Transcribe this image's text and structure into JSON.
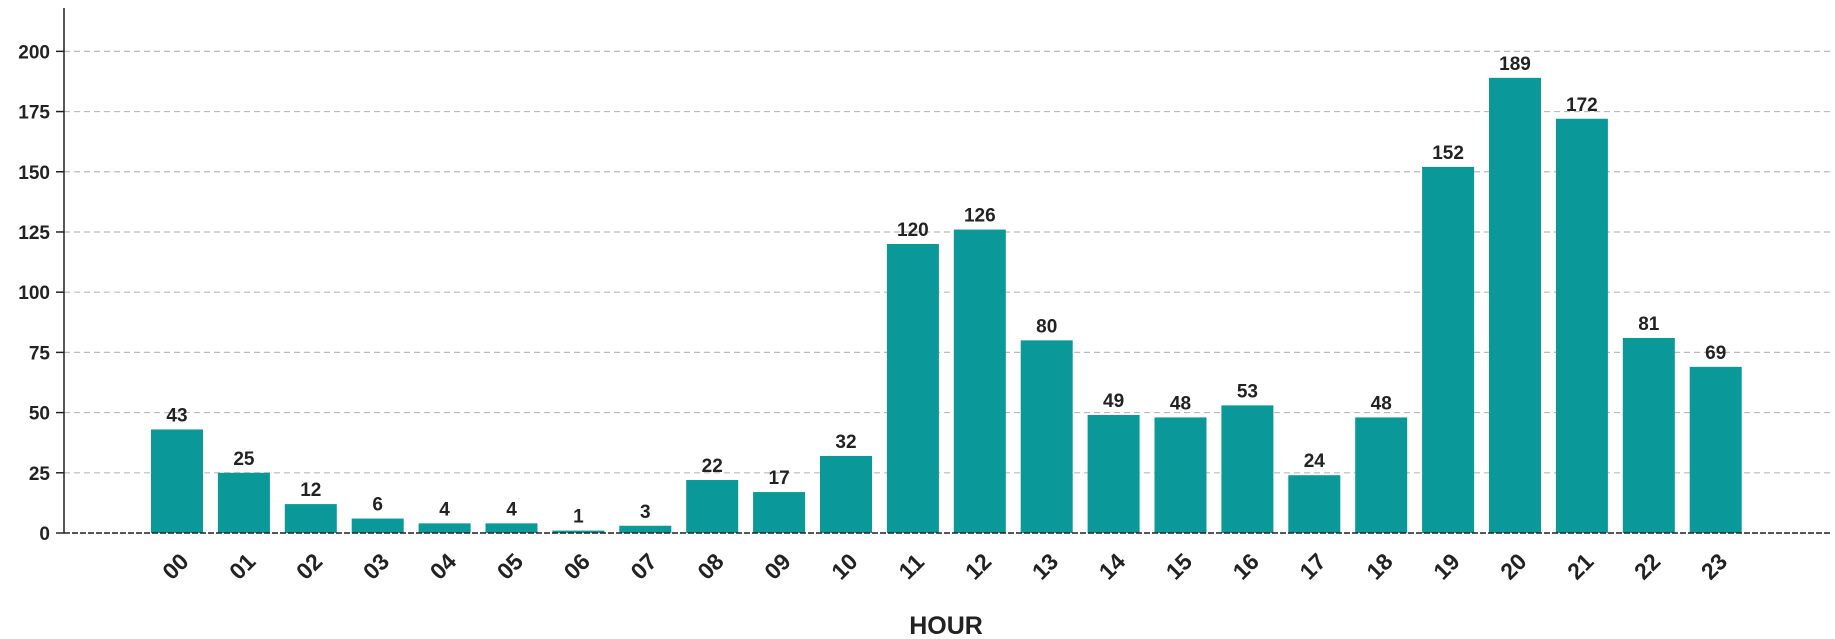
{
  "chart_data": {
    "type": "bar",
    "title": "",
    "xlabel": "HOUR",
    "ylabel": "",
    "categories": [
      "00",
      "01",
      "02",
      "03",
      "04",
      "05",
      "06",
      "07",
      "08",
      "09",
      "10",
      "11",
      "12",
      "13",
      "14",
      "15",
      "16",
      "17",
      "18",
      "19",
      "20",
      "21",
      "22",
      "23"
    ],
    "values": [
      43,
      25,
      12,
      6,
      4,
      4,
      1,
      3,
      22,
      17,
      32,
      120,
      126,
      80,
      49,
      48,
      53,
      24,
      48,
      152,
      189,
      172,
      81,
      69
    ],
    "yticks": [
      0,
      25,
      50,
      75,
      100,
      125,
      150,
      175,
      200
    ],
    "ylim": [
      0,
      218
    ],
    "grid": true,
    "legend": "none",
    "bar_color": "#0b9898",
    "grid_color": "#bbbbbb",
    "axis_color": "#222222"
  }
}
